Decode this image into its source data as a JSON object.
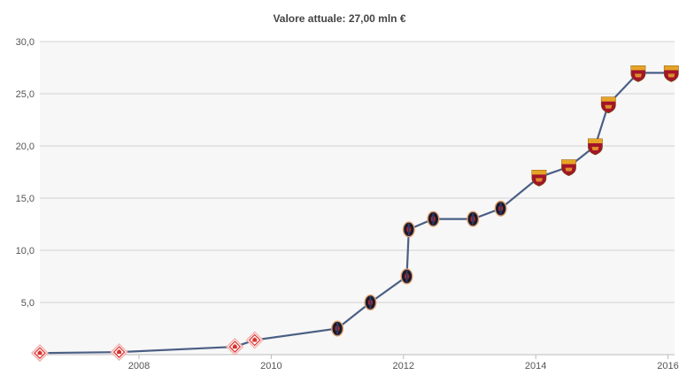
{
  "chart_data": {
    "type": "line",
    "title": "Valore attuale: 27,00 mln €",
    "xlabel": "",
    "ylabel": "",
    "xlim": [
      2006.5,
      2016.1
    ],
    "ylim": [
      0,
      30
    ],
    "grid": true,
    "y_ticks": [
      "5,0",
      "10,0",
      "15,0",
      "20,0",
      "25,0",
      "30,0"
    ],
    "y_tick_values": [
      5,
      10,
      15,
      20,
      25,
      30
    ],
    "x_ticks": [
      "2008",
      "2010",
      "2012",
      "2014",
      "2016"
    ],
    "x_tick_values": [
      2008,
      2010,
      2012,
      2014,
      2016
    ],
    "series": [
      {
        "values": [
          {
            "x": 2006.5,
            "y": 0.15,
            "club": "fiorentina-icon"
          },
          {
            "x": 2007.7,
            "y": 0.25,
            "club": "fiorentina-icon"
          },
          {
            "x": 2009.45,
            "y": 0.75,
            "club": "fiorentina-icon"
          },
          {
            "x": 2009.75,
            "y": 1.4,
            "club": "fiorentina-icon"
          },
          {
            "x": 2011.0,
            "y": 2.5,
            "club": "genoa-icon"
          },
          {
            "x": 2011.5,
            "y": 5.0,
            "club": "genoa-icon"
          },
          {
            "x": 2012.05,
            "y": 7.5,
            "club": "genoa-icon"
          },
          {
            "x": 2012.08,
            "y": 12.0,
            "club": "genoa-icon"
          },
          {
            "x": 2012.45,
            "y": 13.0,
            "club": "genoa-icon"
          },
          {
            "x": 2013.05,
            "y": 13.0,
            "club": "genoa-icon"
          },
          {
            "x": 2013.47,
            "y": 14.0,
            "club": "genoa-icon"
          },
          {
            "x": 2014.05,
            "y": 17.0,
            "club": "roma-icon"
          },
          {
            "x": 2014.5,
            "y": 18.0,
            "club": "roma-icon"
          },
          {
            "x": 2014.9,
            "y": 20.0,
            "club": "roma-icon"
          },
          {
            "x": 2015.1,
            "y": 24.0,
            "club": "roma-icon"
          },
          {
            "x": 2015.55,
            "y": 27.0,
            "club": "roma-icon"
          },
          {
            "x": 2016.05,
            "y": 27.0,
            "club": "roma-icon"
          }
        ]
      }
    ]
  },
  "colors": {
    "line": "#4a5f85",
    "grid": "#d2d2d2",
    "plot_bg": "#f7f7f7",
    "fiorentina": "#d9322e",
    "genoa_dark": "#1a1a2a",
    "genoa_red": "#b8262b",
    "roma_gold": "#e6a427",
    "roma_red": "#a4142a"
  }
}
